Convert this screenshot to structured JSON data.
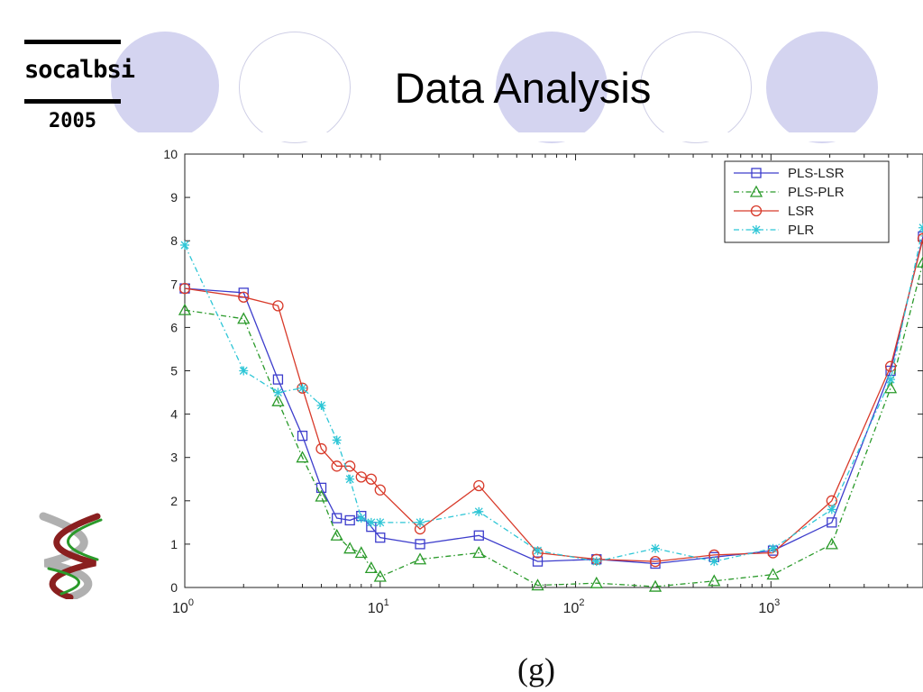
{
  "slide": {
    "title": "Data Analysis",
    "logo_word": "socalbsi",
    "logo_year": "2005",
    "caption": "(g)"
  },
  "colors": {
    "accent_circle": "#d4d4f0",
    "PLS-LSR": "#3d3dcc",
    "PLS-PLR": "#2a9a2a",
    "LSR": "#d83a2a",
    "PLR": "#2ec6d6"
  },
  "icons": [
    "dna-helix-icon"
  ],
  "chart_data": {
    "type": "line",
    "xscale": "log",
    "xlim": [
      1,
      6000
    ],
    "ylim": [
      0,
      10
    ],
    "grid": false,
    "legend_position": "top-right",
    "x_ticks": [
      {
        "value": 1,
        "base": "10",
        "exp": "0"
      },
      {
        "value": 10,
        "base": "10",
        "exp": "1"
      },
      {
        "value": 100,
        "base": "10",
        "exp": "2"
      },
      {
        "value": 1000,
        "base": "10",
        "exp": "3"
      }
    ],
    "y_ticks": [
      "0",
      "1",
      "2",
      "3",
      "4",
      "5",
      "6",
      "7",
      "8",
      "9",
      "10"
    ],
    "x": [
      1,
      2,
      3,
      4,
      5,
      6,
      7,
      8,
      9,
      10,
      16,
      32,
      64,
      128,
      256,
      512,
      1024,
      2048,
      4096,
      6000
    ],
    "series": [
      {
        "name": "PLS-LSR",
        "marker": "square",
        "dash": "solid",
        "values": [
          6.9,
          6.8,
          4.8,
          3.5,
          2.3,
          1.6,
          1.55,
          1.65,
          1.4,
          1.15,
          1.0,
          1.2,
          0.6,
          0.65,
          0.55,
          0.7,
          0.85,
          1.5,
          5.0,
          8.1
        ]
      },
      {
        "name": "PLS-PLR",
        "marker": "triangle",
        "dash": "dashdot",
        "values": [
          6.4,
          6.2,
          4.3,
          3.0,
          2.1,
          1.2,
          0.9,
          0.8,
          0.45,
          0.25,
          0.65,
          0.8,
          0.05,
          0.1,
          0.02,
          0.15,
          0.3,
          1.0,
          4.6,
          7.5
        ]
      },
      {
        "name": "LSR",
        "marker": "circle",
        "dash": "solid",
        "values": [
          6.9,
          6.7,
          6.5,
          4.6,
          3.2,
          2.8,
          2.8,
          2.55,
          2.5,
          2.25,
          1.35,
          2.35,
          0.8,
          0.65,
          0.6,
          0.75,
          0.8,
          2.0,
          5.1,
          8.05
        ]
      },
      {
        "name": "PLR",
        "marker": "star",
        "dash": "dashdot",
        "values": [
          7.9,
          5.0,
          4.5,
          4.6,
          4.2,
          3.4,
          2.5,
          1.6,
          1.5,
          1.5,
          1.5,
          1.75,
          0.85,
          0.6,
          0.9,
          0.6,
          0.9,
          1.8,
          4.8,
          8.3
        ]
      }
    ]
  }
}
